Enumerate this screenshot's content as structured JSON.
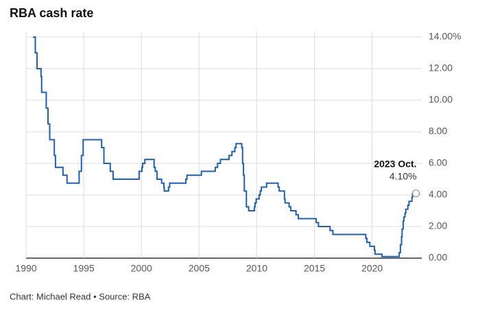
{
  "chart_data": {
    "type": "line",
    "title": "RBA cash rate",
    "source": "Chart: Michael Read • Source: RBA",
    "annotation": {
      "title": "2023 Oct.",
      "text": "4.10%"
    },
    "xlim": [
      1990,
      2024.3
    ],
    "xticks": [
      1990,
      1995,
      2000,
      2005,
      2010,
      2015,
      2020
    ],
    "ylim": [
      0,
      14
    ],
    "yticks": [
      {
        "value": 0,
        "label": "0.00"
      },
      {
        "value": 2,
        "label": "2.00"
      },
      {
        "value": 4,
        "label": "4.00"
      },
      {
        "value": 6,
        "label": "6.00"
      },
      {
        "value": 8,
        "label": "8.00"
      },
      {
        "value": 10,
        "label": "10.00"
      },
      {
        "value": 12,
        "label": "12.00"
      },
      {
        "value": 14,
        "label": "14.00%"
      }
    ],
    "grid": true,
    "step": true,
    "series": [
      {
        "color": "#1f5fae",
        "x": [
          1990.6,
          1990.8,
          1990.95,
          1991.3,
          1991.35,
          1991.75,
          1991.9,
          1992.05,
          1992.45,
          1992.55,
          1993.2,
          1993.55,
          1994.6,
          1994.8,
          1994.95,
          1996.55,
          1996.75,
          1997.3,
          1997.55,
          1999.8,
          2000.05,
          2000.1,
          2000.3,
          2001.1,
          2001.2,
          2001.35,
          2001.75,
          2001.95,
          2001.98,
          2002.35,
          2002.45,
          2003.85,
          2003.95,
          2005.2,
          2006.4,
          2006.6,
          2006.85,
          2007.6,
          2007.85,
          2008.1,
          2008.2,
          2008.7,
          2008.77,
          2008.85,
          2008.92,
          2009.1,
          2009.3,
          2009.8,
          2009.85,
          2009.95,
          2010.2,
          2010.3,
          2010.4,
          2010.85,
          2011.85,
          2011.95,
          2012.4,
          2012.45,
          2012.8,
          2012.95,
          2013.4,
          2013.6,
          2015.15,
          2015.35,
          2016.35,
          2016.6,
          2019.45,
          2019.55,
          2019.8,
          2020.2,
          2020.25,
          2020.85,
          2022.35,
          2022.45,
          2022.55,
          2022.6,
          2022.7,
          2022.75,
          2022.85,
          2022.92,
          2023.1,
          2023.2,
          2023.45,
          2023.5,
          2023.8
        ],
        "values": [
          14,
          13,
          12,
          11.5,
          10.5,
          9.5,
          8.5,
          7.5,
          6.5,
          5.75,
          5.25,
          4.75,
          5.5,
          6.5,
          7.5,
          7,
          6,
          5.5,
          5,
          5.5,
          5.75,
          6,
          6.25,
          5.75,
          5.5,
          5,
          4.75,
          4.5,
          4.25,
          4.5,
          4.75,
          5,
          5.25,
          5.5,
          5.75,
          6,
          6.25,
          6.5,
          6.75,
          7,
          7.25,
          7,
          6,
          5.25,
          4.25,
          3.25,
          3,
          3.25,
          3.5,
          3.75,
          4,
          4.25,
          4.5,
          4.75,
          4.5,
          4.25,
          3.75,
          3.5,
          3.25,
          3,
          2.75,
          2.5,
          2.25,
          2,
          1.75,
          1.5,
          1.25,
          1,
          0.75,
          0.5,
          0.25,
          0.1,
          0.35,
          0.85,
          1.35,
          1.85,
          2.35,
          2.6,
          2.85,
          3.1,
          3.35,
          3.6,
          3.85,
          4.1,
          4.1
        ]
      }
    ]
  }
}
